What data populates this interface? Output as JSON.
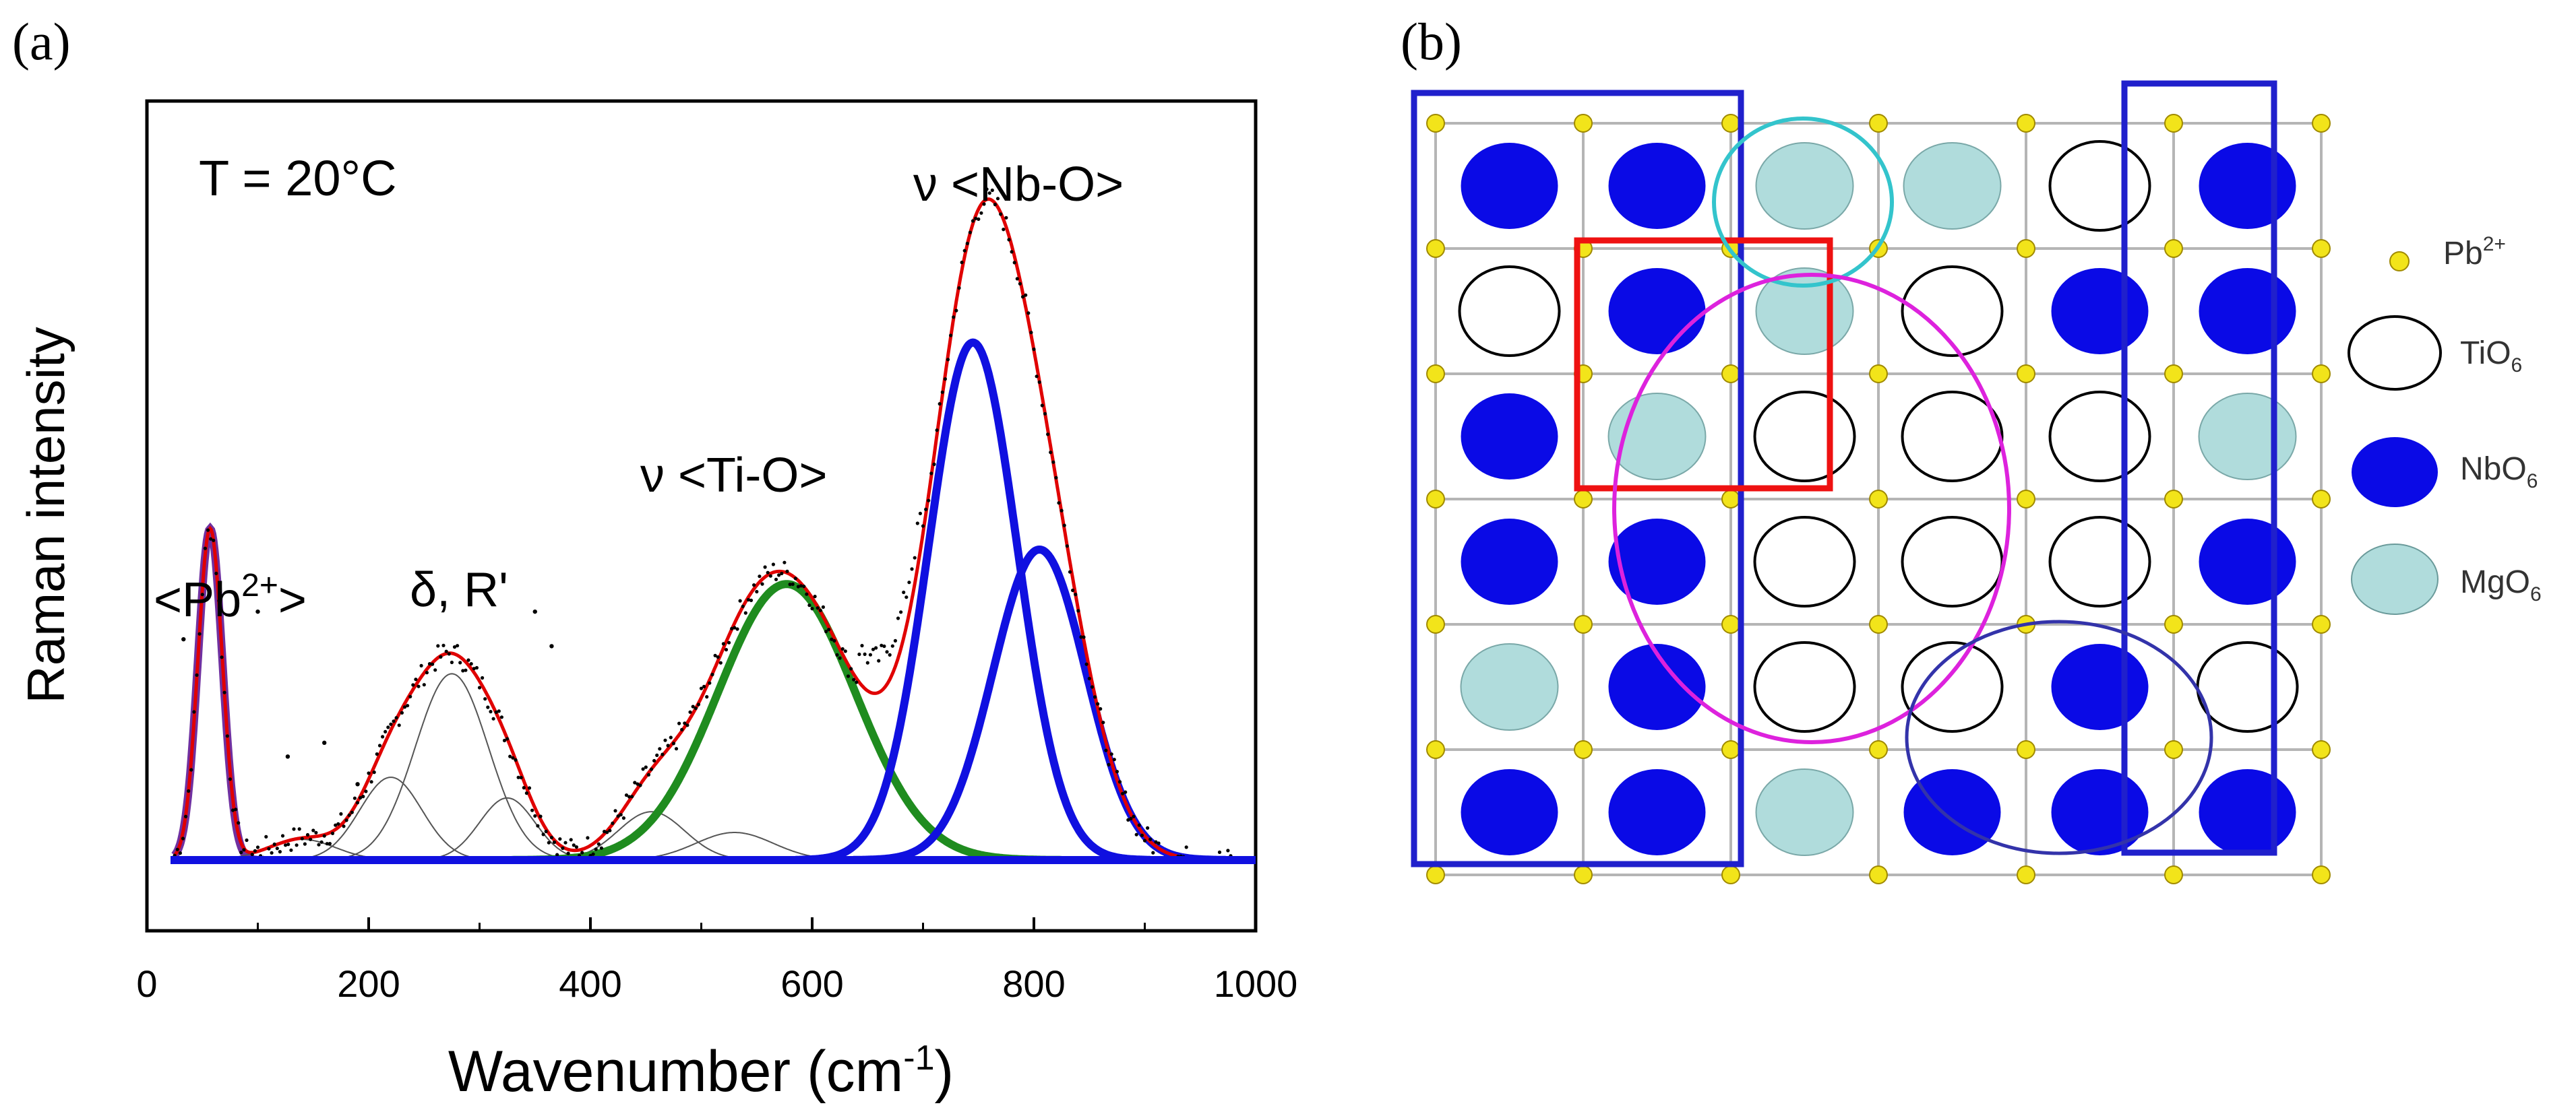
{
  "panels": {
    "a": {
      "label": "(a)"
    },
    "b": {
      "label": "(b)"
    }
  },
  "chart_data": {
    "type": "line",
    "title": "",
    "xlabel_main": "Wavenumber  (cm",
    "xlabel_sup": "-1",
    "xlabel_close": ")",
    "ylabel": "Raman intensity",
    "xlim": [
      0,
      1000
    ],
    "ylim": [
      0,
      1.1
    ],
    "x_ticks": [
      0,
      200,
      400,
      600,
      800,
      1000
    ],
    "y_ticks_labeled": false,
    "annotations": {
      "temperature": "T = 20°C",
      "pb_open": "<Pb",
      "pb_sup": "2+",
      "pb_close": ">",
      "delta": "δ, R'",
      "tio": "ν <Ti-O>",
      "nbo": "ν <Nb-O>"
    },
    "peaks": [
      {
        "name": "Pb2+ mode",
        "color": "#7030a0",
        "center": 57,
        "height": 0.48,
        "width": 11
      },
      {
        "name": "minor-1",
        "color": "#555555",
        "center": 140,
        "height": 0.03,
        "width": 30
      },
      {
        "name": "delta-1",
        "color": "#555555",
        "center": 220,
        "height": 0.12,
        "width": 28
      },
      {
        "name": "delta-R main",
        "color": "#555555",
        "center": 275,
        "height": 0.27,
        "width": 33
      },
      {
        "name": "delta-2",
        "color": "#555555",
        "center": 325,
        "height": 0.09,
        "width": 25
      },
      {
        "name": "Ti-O shoulder",
        "color": "#555555",
        "center": 455,
        "height": 0.07,
        "width": 30
      },
      {
        "name": "Ti-O minor",
        "color": "#555555",
        "center": 530,
        "height": 0.04,
        "width": 35
      },
      {
        "name": "Ti-O stretch",
        "color": "#1f8c1f",
        "center": 577,
        "height": 0.4,
        "width": 62
      },
      {
        "name": "Nb-O stretch 1",
        "color": "#1010e0",
        "center": 745,
        "height": 0.75,
        "width": 40
      },
      {
        "name": "Nb-O stretch 2",
        "color": "#1010e0",
        "center": 805,
        "height": 0.45,
        "width": 42
      }
    ],
    "fit_color": "#e00000",
    "data_color": "#000000"
  },
  "lattice": {
    "rows": [
      [
        "nbo",
        "nbo",
        "mgo",
        "mgo",
        "tio",
        "nbo"
      ],
      [
        "tio",
        "nbo",
        "mgo",
        "tio",
        "nbo",
        "nbo"
      ],
      [
        "nbo",
        "mgo",
        "tio",
        "tio",
        "tio",
        "mgo"
      ],
      [
        "nbo",
        "nbo",
        "tio",
        "tio",
        "tio",
        "nbo"
      ],
      [
        "mgo",
        "nbo",
        "tio",
        "tio",
        "nbo",
        "tio"
      ],
      [
        "nbo",
        "nbo",
        "mgo",
        "nbo",
        "nbo",
        "nbo"
      ]
    ],
    "colors": {
      "nbo": "#0a0ae6",
      "mgo": "#b0dcdc",
      "tio": "#ffffff",
      "pb": "#f2e41a"
    }
  },
  "legend": {
    "pb": {
      "base": "Pb",
      "sup": "2+"
    },
    "tio": {
      "base": "TiO",
      "sub": "6"
    },
    "nbo": {
      "base": "NbO",
      "sub": "6"
    },
    "mgo": {
      "base": "MgO",
      "sub": "6"
    }
  }
}
